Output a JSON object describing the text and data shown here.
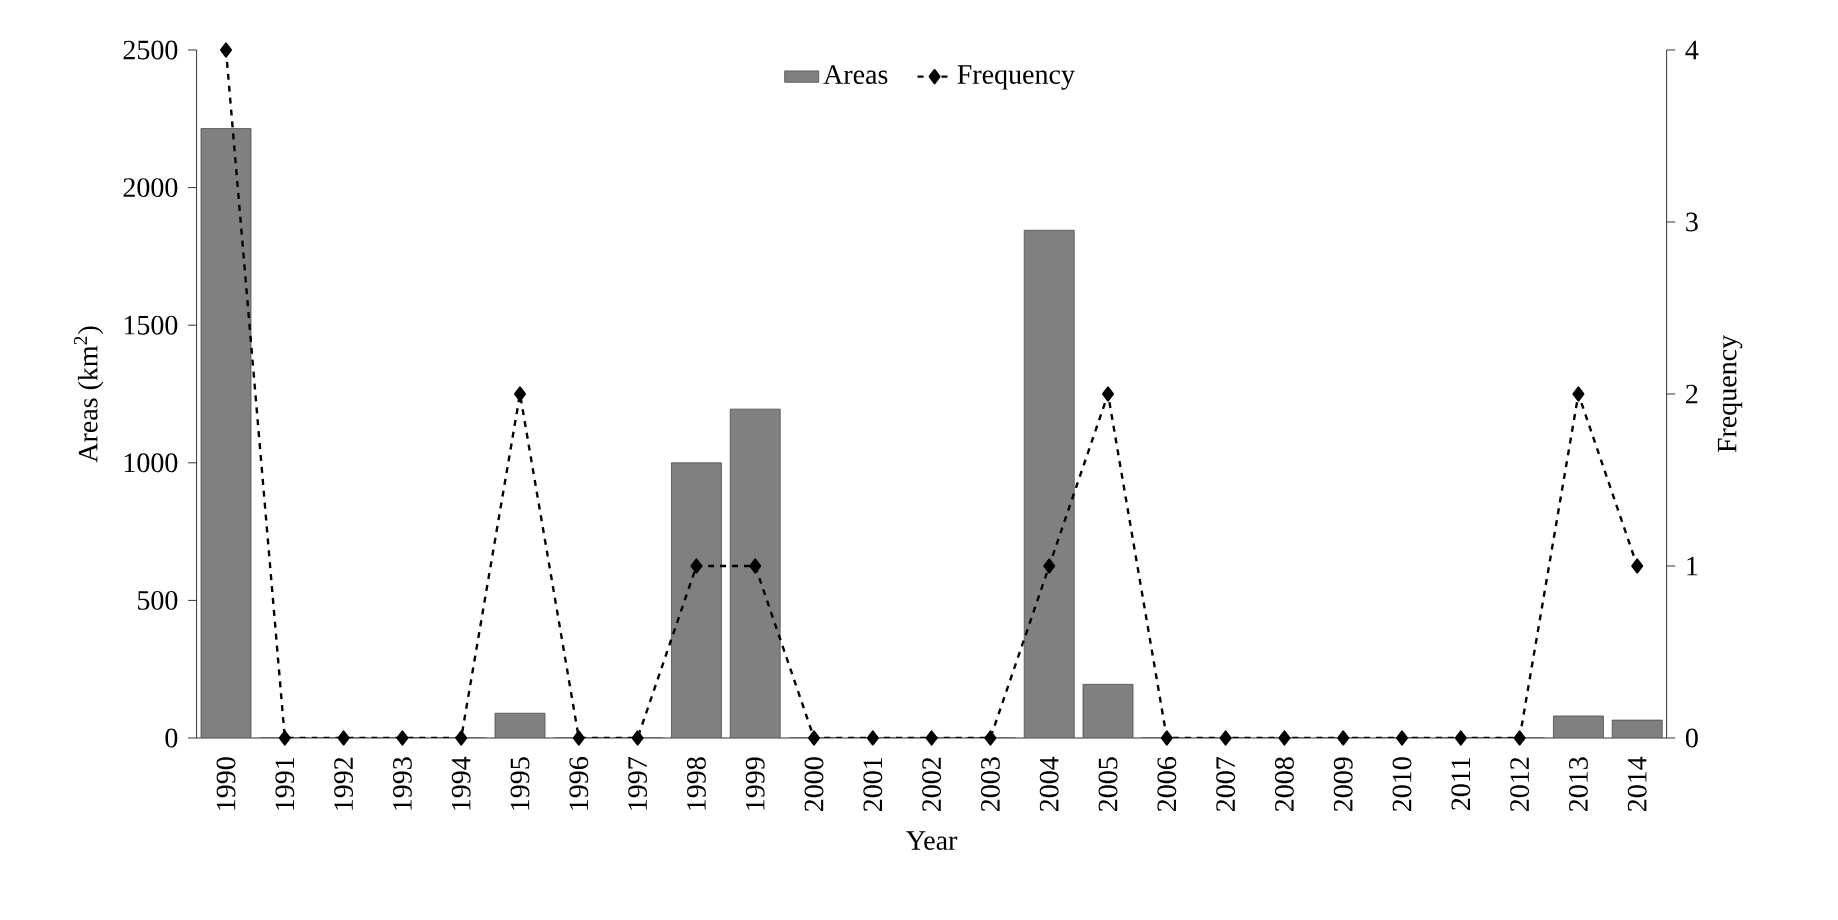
{
  "chart_data": {
    "type": "bar",
    "xlabel": "Year",
    "ylabel": "Areas (km$^{2}$)",
    "y2label": "Frequency",
    "categories": [
      "1990",
      "1991",
      "1992",
      "1993",
      "1994",
      "1995",
      "1996",
      "1997",
      "1998",
      "1999",
      "2000",
      "2001",
      "2002",
      "2003",
      "2004",
      "2005",
      "2006",
      "2007",
      "2008",
      "2009",
      "2010",
      "2011",
      "2012",
      "2013",
      "2014"
    ],
    "series": [
      {
        "name": "Areas",
        "color": "#808080",
        "values": [
          2215,
          0,
          0,
          0,
          0,
          90,
          0,
          0,
          1000,
          1195,
          0,
          0,
          0,
          0,
          1845,
          195,
          0,
          0,
          0,
          0,
          0,
          0,
          0,
          80,
          65
        ]
      },
      {
        "name": "Frequency",
        "type": "line",
        "axis": "y2",
        "color": "#000000",
        "marker": "diamond",
        "line_style": "dashed",
        "values": [
          4,
          0,
          0,
          0,
          0,
          2,
          0,
          0,
          1,
          1,
          0,
          0,
          0,
          0,
          1,
          2,
          0,
          0,
          0,
          0,
          0,
          0,
          0,
          2,
          1
        ]
      }
    ],
    "ylim": [
      0,
      2500
    ],
    "yticks": [
      0,
      500,
      1000,
      1500,
      2000,
      2500
    ],
    "y2lim": [
      0,
      4
    ],
    "y2ticks": [
      0,
      1,
      2,
      3,
      4
    ],
    "grid": false,
    "legend": "top"
  }
}
